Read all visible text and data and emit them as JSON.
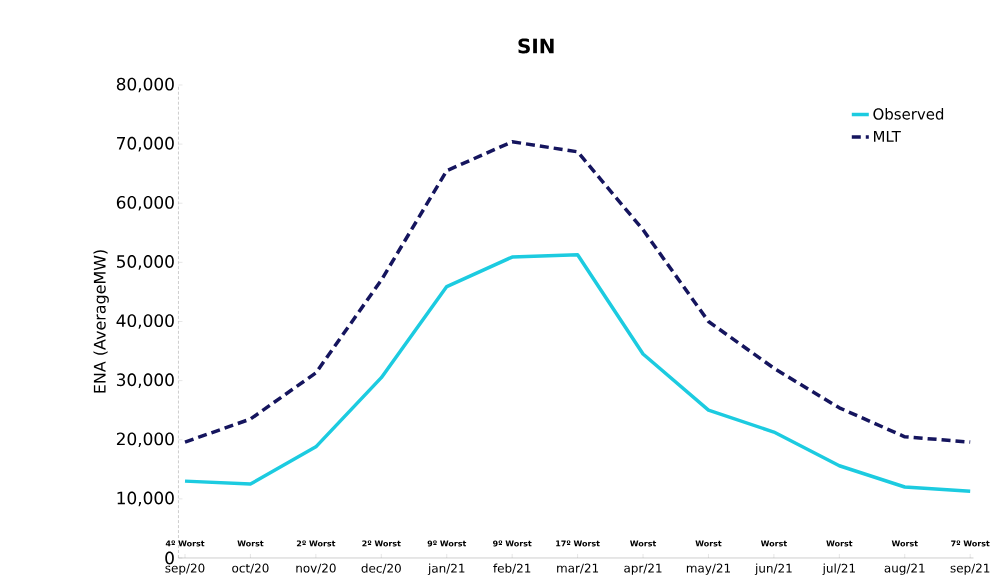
{
  "chart_data": {
    "type": "line",
    "title": "SIN",
    "ylabel": "ENA (AverageMW)",
    "categories": [
      "sep/20",
      "oct/20",
      "nov/20",
      "dec/20",
      "jan/21",
      "feb/21",
      "mar/21",
      "apr/21",
      "may/21",
      "jun/21",
      "jul/21",
      "aug/21",
      "sep/21"
    ],
    "series": [
      {
        "name": "Observed",
        "color": "#1ccbe0",
        "line_style": "solid",
        "values": [
          13000,
          12500,
          18800,
          30500,
          45900,
          50900,
          51300,
          34500,
          25000,
          21300,
          15600,
          12000,
          11300
        ]
      },
      {
        "name": "MLT",
        "color": "#15155e",
        "line_style": "dashed",
        "values": [
          19600,
          23500,
          31300,
          47000,
          65500,
          70400,
          68700,
          55500,
          40000,
          32100,
          25400,
          20500,
          19600
        ]
      }
    ],
    "annotations": [
      "4º Worst",
      "Worst",
      "2º Worst",
      "2º Worst",
      "9º Worst",
      "9º Worst",
      "17º Worst",
      "Worst",
      "Worst",
      "Worst",
      "Worst",
      "Worst",
      "7º Worst"
    ],
    "ylim": [
      0,
      80000
    ],
    "yticks": [
      {
        "value": 0,
        "label": "0"
      },
      {
        "value": 10000,
        "label": "10,000"
      },
      {
        "value": 20000,
        "label": "20,000"
      },
      {
        "value": 30000,
        "label": "30,000"
      },
      {
        "value": 40000,
        "label": "40,000"
      },
      {
        "value": 50000,
        "label": "50,000"
      },
      {
        "value": 60000,
        "label": "60,000"
      },
      {
        "value": 70000,
        "label": "70,000"
      },
      {
        "value": 80000,
        "label": "80,000"
      }
    ],
    "grid": false,
    "legend": "top right",
    "marker": "none"
  }
}
